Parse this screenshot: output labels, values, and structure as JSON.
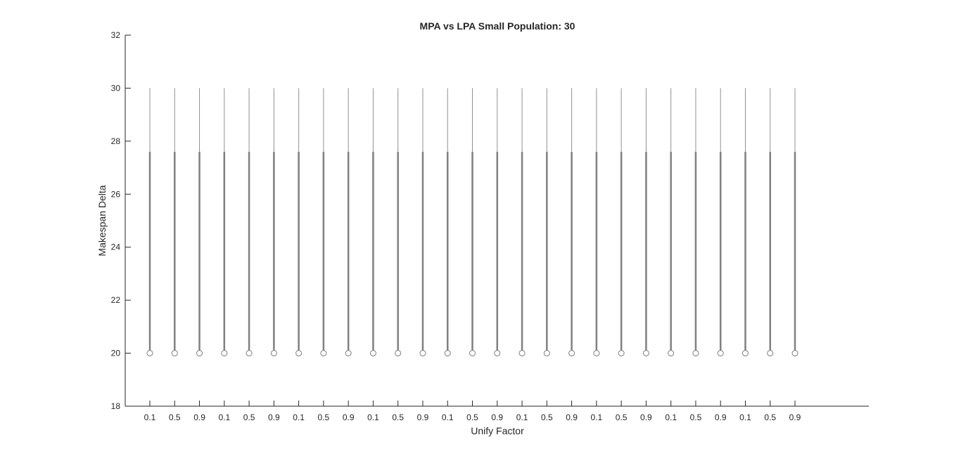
{
  "chart_data": {
    "type": "boxplot",
    "title": "MPA vs LPA Small Population: 30",
    "xlabel": "Unify Factor",
    "ylabel": "Makespan Delta",
    "ylim": [
      18,
      32
    ],
    "yticks": [
      18,
      20,
      22,
      24,
      26,
      28,
      30,
      32
    ],
    "categories": [
      "0.1",
      "0.5",
      "0.9",
      "0.1",
      "0.5",
      "0.9",
      "0.1",
      "0.5",
      "0.9",
      "0.1",
      "0.5",
      "0.9",
      "0.1",
      "0.5",
      "0.9",
      "0.1",
      "0.5",
      "0.9",
      "0.1",
      "0.5",
      "0.9",
      "0.1",
      "0.5",
      "0.9",
      "0.1",
      "0.5",
      "0.9"
    ],
    "boxes": {
      "median": 20,
      "q1": 20,
      "q3": 27.6,
      "whisker_low": 20,
      "whisker_high": 30
    },
    "colors": {
      "axis": "#262626",
      "box": "#808080",
      "whisker": "#909090"
    }
  }
}
